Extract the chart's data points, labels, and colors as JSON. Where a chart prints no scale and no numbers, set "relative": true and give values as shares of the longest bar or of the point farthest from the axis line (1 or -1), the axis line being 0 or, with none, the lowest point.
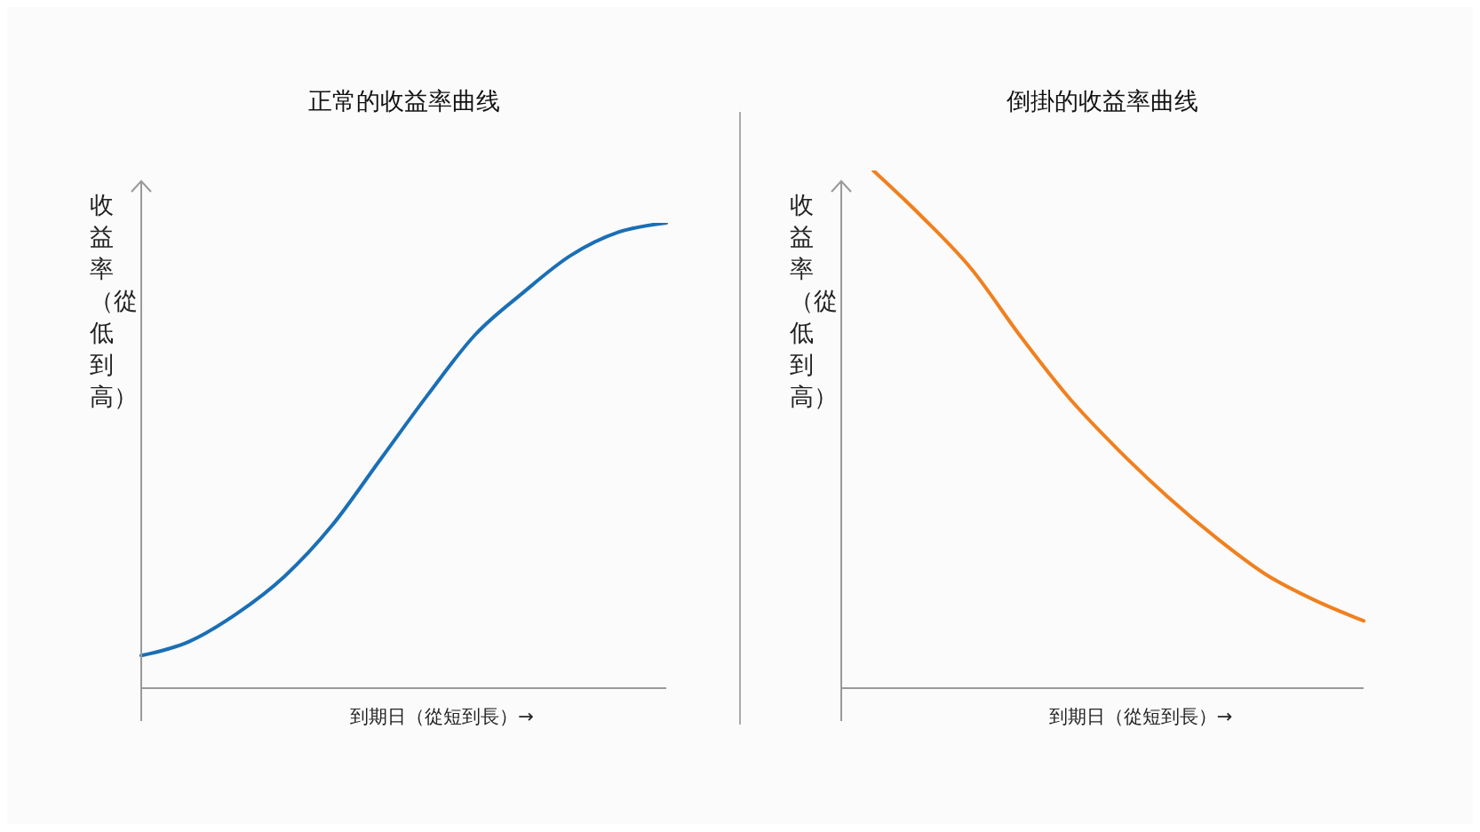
{
  "chart_data": [
    {
      "type": "line",
      "title": "正常的收益率曲线",
      "xlabel": "到期日（從短到長）→",
      "ylabel": "收益率（從低到高）",
      "relative": true,
      "categories": [
        null,
        null,
        null,
        null,
        null,
        null,
        null,
        null,
        null,
        null,
        null,
        null
      ],
      "values": [
        0.07,
        0.1,
        0.16,
        0.24,
        0.35,
        0.49,
        0.63,
        0.76,
        0.85,
        0.93,
        0.98,
        1.0
      ],
      "color": "#1a6fb5"
    },
    {
      "type": "line",
      "title": "倒掛的收益率曲线",
      "xlabel": "到期日（從短到長）→",
      "ylabel": "收益率（從低到高）",
      "relative": true,
      "categories": [
        null,
        null,
        null,
        null,
        null,
        null,
        null,
        null,
        null,
        null,
        null
      ],
      "values": [
        1.0,
        0.91,
        0.81,
        0.68,
        0.56,
        0.46,
        0.37,
        0.29,
        0.22,
        0.17,
        0.13
      ],
      "color": "#f0801f"
    }
  ]
}
